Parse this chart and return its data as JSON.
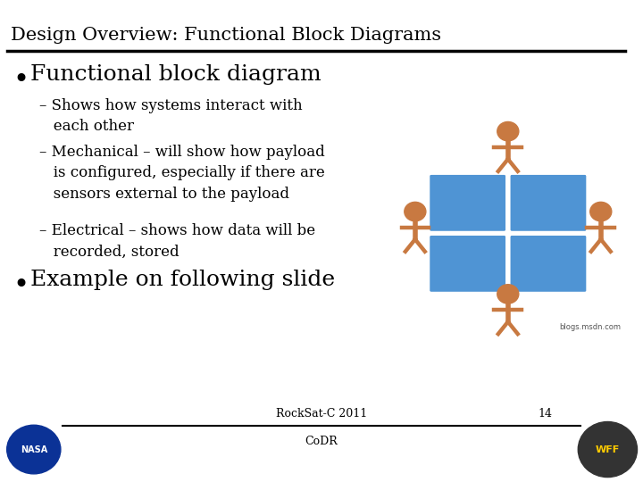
{
  "title": "Design Overview: Functional Block Diagrams",
  "title_fontsize": 15,
  "title_font": "DejaVu Serif",
  "background_color": "#ffffff",
  "text_color": "#000000",
  "bullet1": "Functional block diagram",
  "bullet1_fontsize": 18,
  "sub_bullet1": "– Shows how systems interact with\n   each other",
  "sub_bullet2": "– Mechanical – will show how payload\n   is configured, especially if there are\n   sensors external to the payload",
  "sub_bullet3": "– Electrical – shows how data will be\n   recorded, stored",
  "sub_bullet_fontsize": 12,
  "bullet2": "Example on following slide",
  "bullet2_fontsize": 18,
  "footer_center_line1": "RockSat-C 2011",
  "footer_center_line2": "CoDR",
  "footer_page": "14",
  "footer_fontsize": 9,
  "image_credit": "blogs.msdn.com",
  "image_credit_fontsize": 6,
  "line_color": "#000000",
  "puzzle_color": "#4f94d4",
  "figure_color": "#c87941"
}
